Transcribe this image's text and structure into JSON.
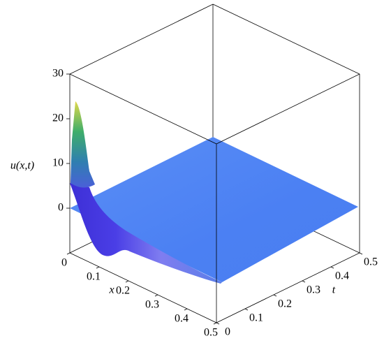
{
  "chart_data": {
    "type": "surface3d",
    "xlabel": "x",
    "ylabel": "t",
    "zlabel": "u(x,t)",
    "xlim": [
      0,
      0.5
    ],
    "ylim": [
      0,
      0.5
    ],
    "zlim": [
      -10,
      30
    ],
    "xticks": [
      0,
      0.1,
      0.2,
      0.3,
      0.4,
      0.5
    ],
    "yticks": [
      0,
      0.1,
      0.2,
      0.3,
      0.4,
      0.5
    ],
    "zticks": [
      0,
      10,
      20,
      30
    ]
  }
}
